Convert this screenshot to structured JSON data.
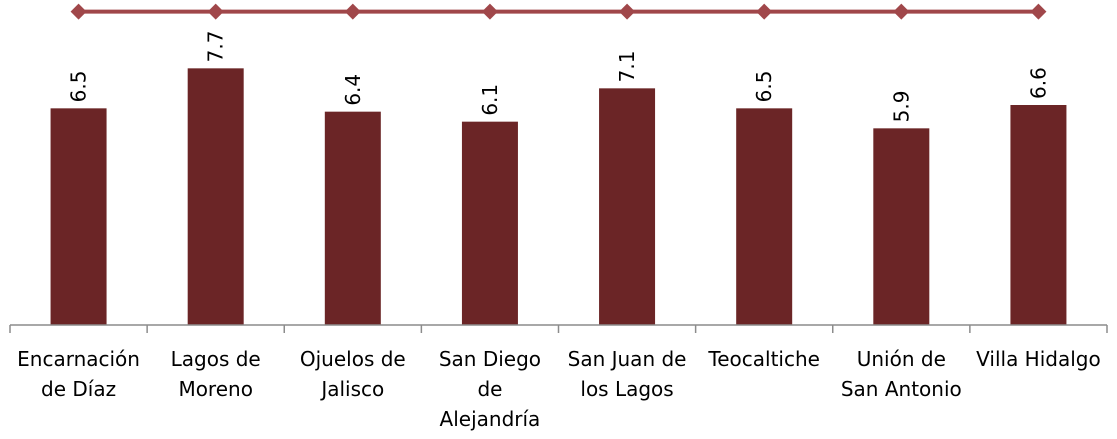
{
  "chart_data": {
    "type": "bar",
    "categories": [
      [
        "Encarnación",
        "de Díaz"
      ],
      [
        "Lagos de",
        "Moreno"
      ],
      [
        "Ojuelos de",
        "Jalisco"
      ],
      [
        "San Diego",
        "de",
        "Alejandría"
      ],
      [
        "San Juan de",
        "los Lagos"
      ],
      [
        "Teocaltiche"
      ],
      [
        "Unión de",
        "San Antonio"
      ],
      [
        "Villa Hidalgo"
      ]
    ],
    "series": [
      {
        "values": [
          6.5,
          7.7,
          6.4,
          6.1,
          7.1,
          6.5,
          5.9,
          6.6
        ]
      }
    ],
    "reference_line": {
      "value": 9.4,
      "marker": "diamond"
    },
    "data_labels": [
      "6.5",
      "7.7",
      "6.4",
      "6.1",
      "7.1",
      "6.5",
      "5.9",
      "6.6"
    ],
    "ylim": [
      0,
      9.75
    ],
    "grid": false,
    "colors": {
      "bar": "#6B2526",
      "line": "#A0474A",
      "marker": "#A0474A",
      "axis": "#8C8C8C"
    }
  }
}
